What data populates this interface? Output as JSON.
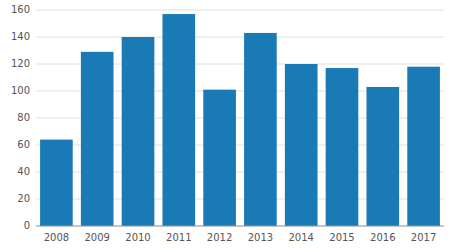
{
  "chart_data": {
    "type": "bar",
    "categories": [
      "2008",
      "2009",
      "2010",
      "2011",
      "2012",
      "2013",
      "2014",
      "2015",
      "2016",
      "2017"
    ],
    "values": [
      64,
      129,
      140,
      157,
      101,
      143,
      120,
      117,
      103,
      118
    ],
    "color": "#1a7ab5",
    "ylim": [
      0,
      160
    ],
    "yticks": [
      0,
      20,
      40,
      60,
      80,
      100,
      120,
      140,
      160
    ],
    "grid": true
  }
}
